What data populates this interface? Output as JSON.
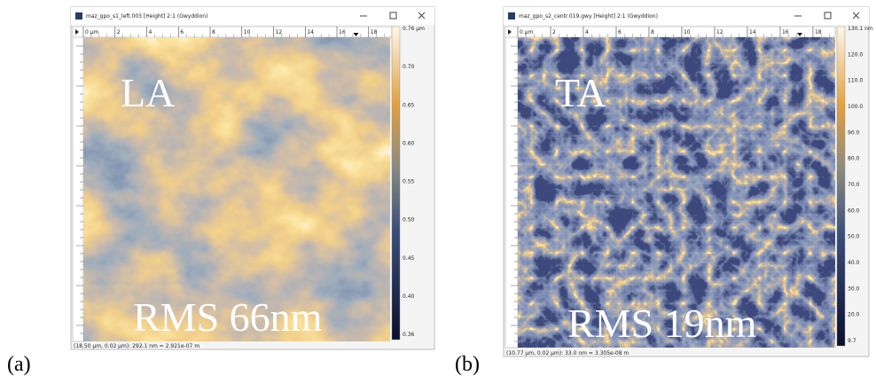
{
  "panels": [
    {
      "label": "(a)",
      "window_title": "maz_gpo_s1_left.003 [Height] 2:1 (Gwyddion)",
      "ruler": [
        "0 μm",
        "2",
        "4",
        "6",
        "8",
        "10",
        "12",
        "14",
        "16",
        "18"
      ],
      "colorbar": [
        "0.76 μm",
        "0.70",
        "0.65",
        "0.60",
        "0.55",
        "0.50",
        "0.45",
        "0.40",
        "0.36"
      ],
      "status": "(18.50 μm, 0.02 μm): 292.1 nm = 2.921e-07 m",
      "overlay_top": "LA",
      "overlay_bottom": "RMS 66nm"
    },
    {
      "label": "(b)",
      "window_title": "maz_gpo_s2_centr.019.gwy [Height] 2:1 (Gwyddion)",
      "ruler": [
        "0 μm",
        "2",
        "4",
        "6",
        "8",
        "10",
        "12",
        "14",
        "16",
        "18"
      ],
      "colorbar": [
        "130.1 nm",
        "120.0",
        "110.0",
        "100.0",
        "90.0",
        "80.0",
        "70.0",
        "60.0",
        "50.0",
        "40.0",
        "30.0",
        "20.0",
        "9.7"
      ],
      "status": "(10.77 μm, 0.02 μm): 33.0 nm = 3.305e-08 m",
      "overlay_top": "TA",
      "overlay_bottom": "RMS 19nm"
    }
  ]
}
